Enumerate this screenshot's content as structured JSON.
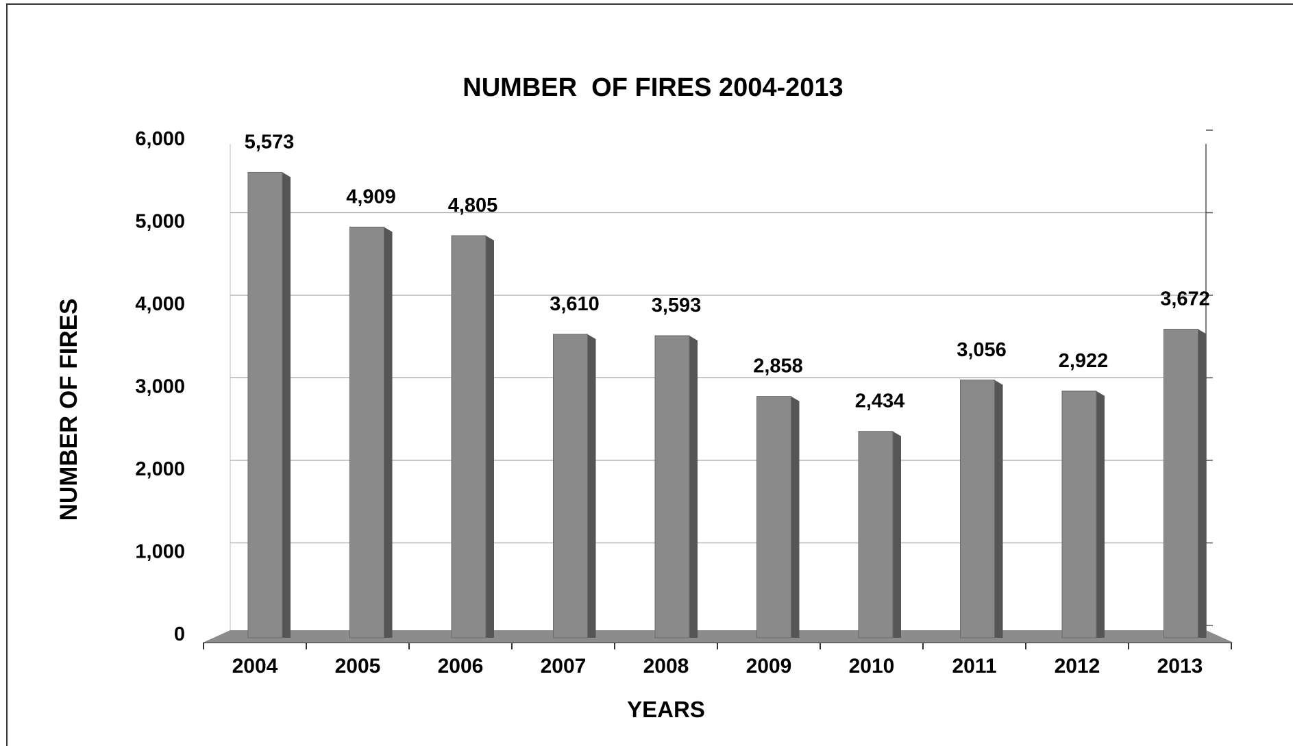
{
  "chart_data": {
    "type": "bar",
    "title": "NUMBER  OF FIRES 2004-2013",
    "xlabel": "YEARS",
    "ylabel": "NUMBER OF FIRES",
    "categories": [
      "2004",
      "2005",
      "2006",
      "2007",
      "2008",
      "2009",
      "2010",
      "2011",
      "2012",
      "2013"
    ],
    "values": [
      5573,
      4909,
      4805,
      3610,
      3593,
      2858,
      2434,
      3056,
      2922,
      3672
    ],
    "data_labels": [
      "5,573",
      "4,909",
      "4,805",
      "3,610",
      "3,593",
      "2,858",
      "2,434",
      "3,056",
      "2,922",
      "3,672"
    ],
    "ylim": [
      0,
      6000
    ],
    "yticks": [
      0,
      1000,
      2000,
      3000,
      4000,
      5000,
      6000
    ],
    "ytick_labels": [
      "0",
      "1,000",
      "2,000",
      "3,000",
      "4,000",
      "5,000",
      "6,000"
    ],
    "grid": true,
    "legend": "none",
    "style": "3d-column",
    "colors": {
      "bar_front": "#8a8a8a",
      "bar_side": "#555555",
      "floor": "#8c8c8c",
      "gridline": "#a6a6a6"
    }
  }
}
